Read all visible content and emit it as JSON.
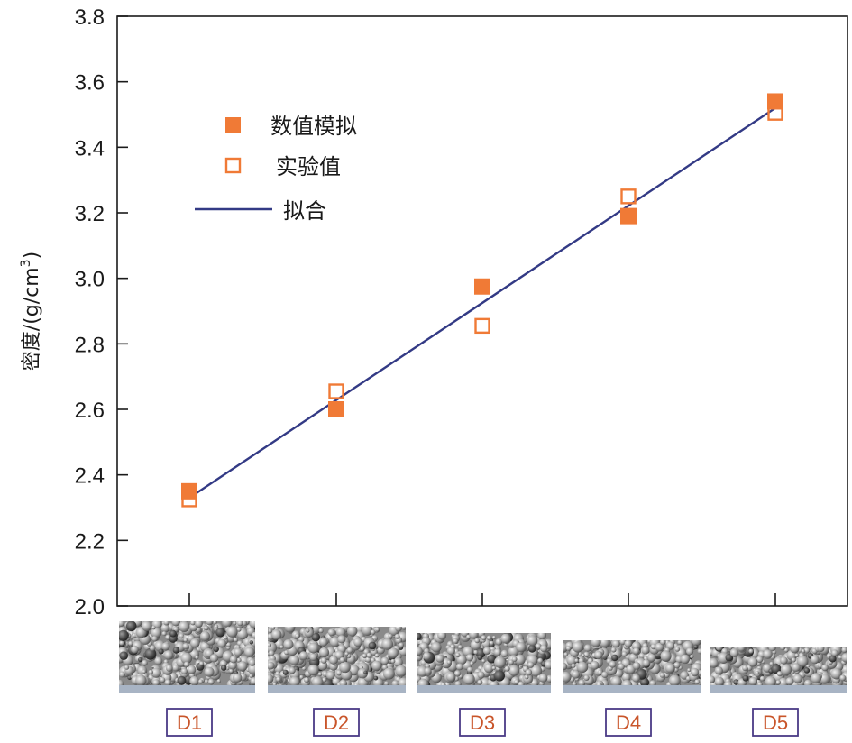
{
  "chart_data": {
    "type": "scatter",
    "ylabel": "密度/(g/cm",
    "ylabel_superscript": "3",
    "ylabel_suffix": ")",
    "ylim": [
      2.0,
      3.8
    ],
    "yticks": [
      "2.0",
      "2.2",
      "2.4",
      "2.6",
      "2.8",
      "3.0",
      "3.2",
      "3.4",
      "3.6",
      "3.8"
    ],
    "categories": [
      "D1",
      "D2",
      "D3",
      "D4",
      "D5"
    ],
    "series": [
      {
        "name": "数值模拟",
        "marker": "filled-square",
        "color": "#f07a36",
        "values": [
          2.35,
          2.6,
          2.975,
          3.19,
          3.54
        ]
      },
      {
        "name": "实验值",
        "marker": "open-square",
        "color": "#f07a36",
        "values": [
          2.325,
          2.655,
          2.855,
          3.25,
          3.505
        ]
      }
    ],
    "fit": {
      "name": "拟合",
      "color": "#333a85",
      "start": 2.33,
      "end": 3.52
    },
    "legend": "top-left",
    "grid": false,
    "sample_images": [
      "D1",
      "D2",
      "D3",
      "D4",
      "D5"
    ]
  }
}
